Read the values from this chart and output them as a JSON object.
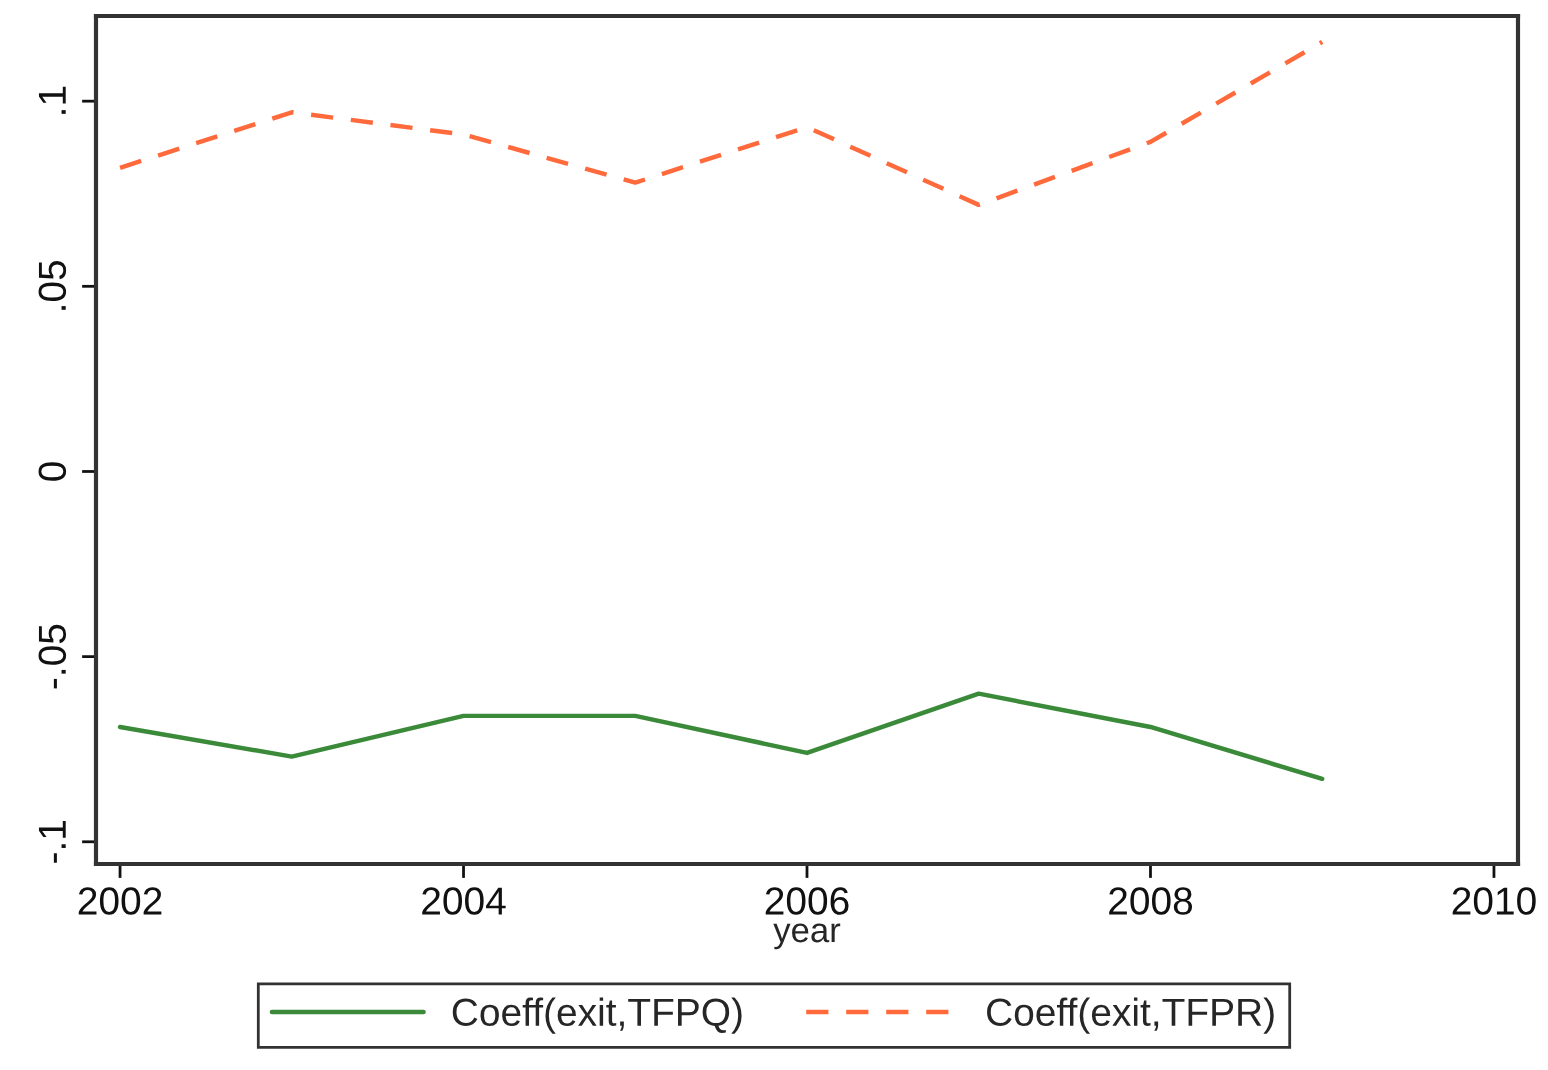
{
  "chart_data": {
    "type": "line",
    "xlabel": "year",
    "x": [
      2002,
      2003,
      2004,
      2005,
      2006,
      2007,
      2008,
      2009
    ],
    "series": [
      {
        "name": "Coeff(exit,TFPQ)",
        "color": "#3a8a3a",
        "line_style": "solid",
        "values": [
          -0.069,
          -0.077,
          -0.066,
          -0.066,
          -0.076,
          -0.06,
          -0.069,
          -0.083
        ]
      },
      {
        "name": "Coeff(exit,TFPR)",
        "color": "#ff6a3d",
        "line_style": "dashed",
        "values": [
          0.082,
          0.097,
          0.091,
          0.078,
          0.093,
          0.072,
          0.089,
          0.116
        ]
      }
    ],
    "xlim": [
      2001.86,
      2010.14
    ],
    "ylim": [
      -0.106,
      0.123
    ],
    "xticks": [
      2002,
      2004,
      2006,
      2008,
      2010
    ],
    "yticks": [
      {
        "value": -0.1,
        "label": "-.1"
      },
      {
        "value": -0.05,
        "label": "-.05"
      },
      0,
      {
        "value": 0.05,
        "label": ".05"
      },
      {
        "value": 0.1,
        "label": ".1"
      }
    ],
    "grid": false,
    "legend": "bottom",
    "marker": "none"
  }
}
